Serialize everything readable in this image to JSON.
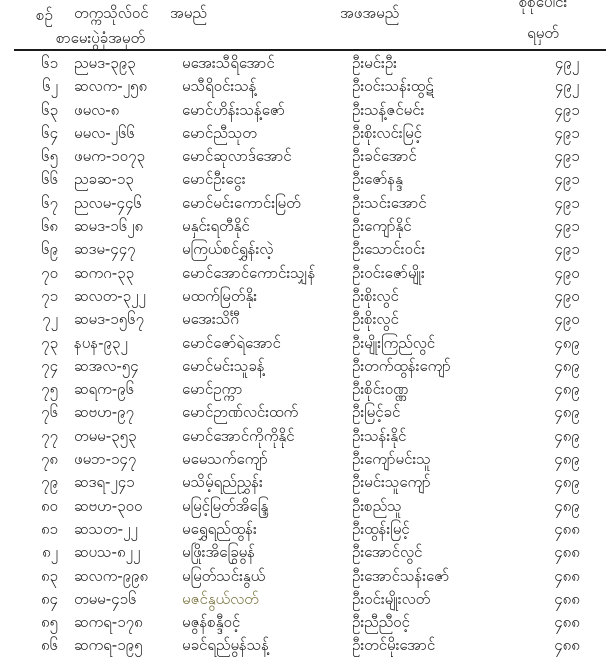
{
  "table": {
    "headers": {
      "serial": "စဉ်",
      "roll_line1": "တက္ကသိုလ်ဝင်",
      "roll_line2": "စာမေးပွဲခုံအမှတ်",
      "name": "အမည်",
      "father": "အဖအမည်",
      "score_line1": "စုစုပေါင်း",
      "score_line2": "ရမှတ်"
    },
    "rows": [
      {
        "no": "၆၁",
        "roll": "ညမဒ-၃၉၃",
        "name": "မအေးသီရိအောင်",
        "father": "ဦးမင်းဦး",
        "score": "၄၉၂",
        "highlight": false
      },
      {
        "no": "၆၂",
        "roll": "ဆလက-၂၅၈",
        "name": "မသီရိဝင်းသန့်",
        "father": "ဦးဝင်းသန်းထွဋ်",
        "score": "၄၉၂",
        "highlight": false
      },
      {
        "no": "၆၃",
        "roll": "ဖမလ-၈",
        "name": "မောင်ဟိန်းသန့်ဇော်",
        "father": "ဦးသန့်ဇင်မင်း",
        "score": "၄၉၁",
        "highlight": false
      },
      {
        "no": "၆၄",
        "roll": "မမလ-၂၆၆",
        "name": "မောင်ညီသုတ",
        "father": "ဦးစိုးလင်းမြင့်",
        "score": "၄၉၁",
        "highlight": false
      },
      {
        "no": "၆၅",
        "roll": "ဖမက-၁၀၇၃",
        "name": "မောင်ဆုလာဒ်အောင်",
        "father": "ဦးခင်အောင်",
        "score": "၄၉၁",
        "highlight": false
      },
      {
        "no": "၆၆",
        "roll": "ညခဆ-၁၃",
        "name": "မောင်ဦးငွေး",
        "father": "ဦးဇော်နန္ဒ",
        "score": "၄၉၁",
        "highlight": false
      },
      {
        "no": "၆၇",
        "roll": "ညလမ-၄၄၆",
        "name": "မောင်မင်းကောင်းမြတ်",
        "father": "ဦးသင်းအောင်",
        "score": "၄၉၁",
        "highlight": false
      },
      {
        "no": "၆၈",
        "roll": "ဆမဒ-၁၆၂၈",
        "name": "မနှင်းရတီနိုင်",
        "father": "ဦးကျော်နိုင်",
        "score": "၄၉၁",
        "highlight": false
      },
      {
        "no": "၆၉",
        "roll": "ဆဒမ-၄၄၇",
        "name": "မကြယ်စင်ရွှန်းလဲ့",
        "father": "ဦးသောင်းဝင်း",
        "score": "၄၉၁",
        "highlight": false
      },
      {
        "no": "၇၀",
        "roll": "ဆကဂ-၃၃",
        "name": "မောင်အောင်ကောင်းသျှန်",
        "father": "ဦးဝင်းဇော်မျိုး",
        "score": "၄၉၀",
        "highlight": false
      },
      {
        "no": "၇၁",
        "roll": "ဆလတ-၃၂၂",
        "name": "မထက်မြတ်နိုး",
        "father": "ဦးစိုးလွင်",
        "score": "၄၉၀",
        "highlight": false
      },
      {
        "no": "၇၂",
        "roll": "ဆမဒ-၁၅၆၇",
        "name": "မအေးသိင်္ဂီ",
        "father": "ဦးစိုးလွင်",
        "score": "၄၉၀",
        "highlight": false
      },
      {
        "no": "၇၃",
        "roll": "နပန-၉၃၂",
        "name": "မောင်ဇော်ရဲအောင်",
        "father": "ဦးမျိုးကြည်လွင်",
        "score": "၄၈၉",
        "highlight": false
      },
      {
        "no": "၇၄",
        "roll": "ဆအလ-၅၄",
        "name": "မောင်မင်းသူခန့်",
        "father": "ဦးတက်ထွန်းကျော်",
        "score": "၄၈၉",
        "highlight": false
      },
      {
        "no": "၇၅",
        "roll": "ဆရက-၉၆",
        "name": "မောင်ဥက္ကာ",
        "father": "ဦးစိုင်းဝဏ္ဏ",
        "score": "၄၈၉",
        "highlight": false
      },
      {
        "no": "၇၆",
        "roll": "ဆဗဟ-၉၇",
        "name": "မောင်ဉာဏ်လင်းထက်",
        "father": "ဦးမြင့်ခင်",
        "score": "၄၈၉",
        "highlight": false
      },
      {
        "no": "၇၇",
        "roll": "တမမ-၃၅၃",
        "name": "မောင်အောင်ကိုကိုနိုင်",
        "father": "ဦးသန်းနိုင်",
        "score": "၄၈၉",
        "highlight": false
      },
      {
        "no": "၇၈",
        "roll": "ဖမဘ-၁၄၇",
        "name": "မမေသက်ကျော်",
        "father": "ဦးကျော်မင်းသူ",
        "score": "၄၈၉",
        "highlight": false
      },
      {
        "no": "၇၉",
        "roll": "ဆဒရ-၂၄၁",
        "name": "မသိမ့်ရည်ညွှန်း",
        "father": "ဦးမင်းသူကျော်",
        "score": "၄၈၉",
        "highlight": false
      },
      {
        "no": "၈၀",
        "roll": "ဆဗဟ-၃၀၀",
        "name": "မမြင့်မြတ်အိန္ဒြေ",
        "father": "ဦးစည်သူ",
        "score": "၄၈၉",
        "highlight": false
      },
      {
        "no": "၈၁",
        "roll": "ဆသတ-၂၂",
        "name": "မရွှေရည်ထွန်း",
        "father": "ဦးထွန်းမြင့်",
        "score": "၄၈၈",
        "highlight": false
      },
      {
        "no": "၈၂",
        "roll": "ဆပသ-၈၂၂",
        "name": "မဖြိုးအိခြွေမွန်",
        "father": "ဦးအောင်လွင်",
        "score": "၄၈၈",
        "highlight": false
      },
      {
        "no": "၈၃",
        "roll": "ဆလက-၉၉၈",
        "name": "မမြတ်သင်းနွယ်",
        "father": "ဦးအောင်သန်းဇော်",
        "score": "၄၈၈",
        "highlight": false
      },
      {
        "no": "၈၄",
        "roll": "တမမ-၄၁၆",
        "name": "မဇင်နွယ်လတ်",
        "father": "ဦးဝင်းမျိုးလတ်",
        "score": "၄၈၈",
        "highlight": true
      },
      {
        "no": "၈၅",
        "roll": "ဆကရ-၁၇၈",
        "name": "မဇွန်စန္ဒီဝင့်",
        "father": "ဦးညီညီဝင့်",
        "score": "၄၈၈",
        "highlight": false
      },
      {
        "no": "၈၆",
        "roll": "ဆကရ-၁၉၅",
        "name": "မခင်ရည်မွန်သန့်",
        "father": "ဦးတင်မိုးအောင်",
        "score": "၄၈၈",
        "highlight": false
      }
    ]
  },
  "colors": {
    "text": "#1b1b1b",
    "highlighted_name": "#76713b",
    "rule": "#1a1a1a"
  }
}
